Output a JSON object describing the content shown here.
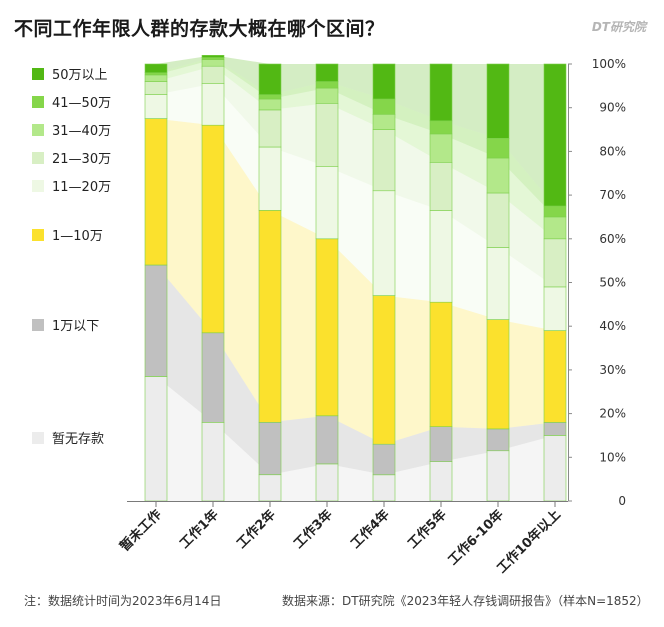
{
  "header": {
    "title": "不同工作年限人群的存款大概在哪个区间？",
    "brand": "DT研究院"
  },
  "footer": {
    "note": "注：数据统计时间为2023年6月14日",
    "source": "数据来源：DT研究院《2023年轻人存钱调研报告》（样本N=1852）"
  },
  "legend": [
    {
      "label": "50万以上",
      "color": "#52b814"
    },
    {
      "label": "41—50万",
      "color": "#85d64a"
    },
    {
      "label": "31—40万",
      "color": "#b3e88a"
    },
    {
      "label": "21—30万",
      "color": "#d8efc4"
    },
    {
      "label": "11—20万",
      "color": "#eef8e4"
    },
    {
      "label": "1—10万",
      "color": "#fbe12d"
    },
    {
      "label": "1万以下",
      "color": "#c0c0c0"
    },
    {
      "label": "暂无存款",
      "color": "#ececec"
    }
  ],
  "chart_data": {
    "type": "bar",
    "stacked": true,
    "normalized": true,
    "ylim": [
      0,
      100
    ],
    "yticks": [
      "0",
      "10%",
      "20%",
      "30%",
      "40%",
      "50%",
      "60%",
      "70%",
      "80%",
      "90%",
      "100%"
    ],
    "categories": [
      "暂未工作",
      "工作1年",
      "工作2年",
      "工作3年",
      "工作4年",
      "工作5年",
      "工作6-10年",
      "工作10年以上"
    ],
    "series": [
      {
        "name": "暂无存款",
        "color": "#ececec",
        "values": [
          28.5,
          18,
          6,
          8.5,
          6,
          9,
          11.5,
          15
        ]
      },
      {
        "name": "1万以下",
        "color": "#c0c0c0",
        "values": [
          25.5,
          20.5,
          12,
          11,
          7,
          8,
          5,
          3
        ]
      },
      {
        "name": "1—10万",
        "color": "#fbe12d",
        "values": [
          33.5,
          47.5,
          48.5,
          40.5,
          34,
          28.5,
          25,
          21
        ]
      },
      {
        "name": "11—20万",
        "color": "#eef8e4",
        "values": [
          5.5,
          9.5,
          14.5,
          16.5,
          24,
          21,
          16.5,
          10
        ]
      },
      {
        "name": "21—30万",
        "color": "#d8efc4",
        "values": [
          3,
          4,
          8.5,
          14.5,
          14,
          11,
          12.5,
          11
        ]
      },
      {
        "name": "31—40万",
        "color": "#b3e88a",
        "values": [
          1.5,
          1.5,
          2.5,
          3.5,
          3.5,
          6.5,
          8,
          5
        ]
      },
      {
        "name": "41—50万",
        "color": "#85d64a",
        "values": [
          0.5,
          0.5,
          1,
          1.5,
          3.5,
          3,
          4.5,
          2.5
        ]
      },
      {
        "name": "50万以上",
        "color": "#52b814",
        "values": [
          2,
          0.5,
          7,
          4,
          8,
          13,
          17,
          32.5
        ]
      }
    ]
  }
}
